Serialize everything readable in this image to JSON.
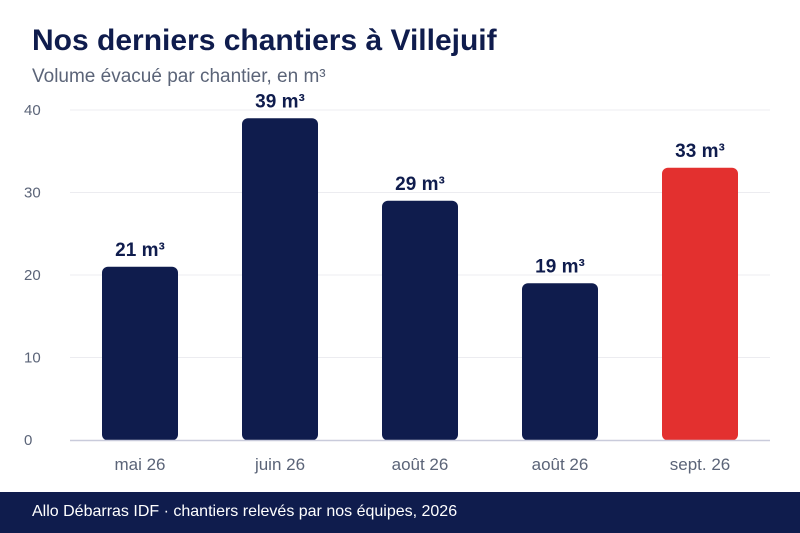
{
  "header": {
    "title": "Nos derniers chantiers à Villejuif",
    "subtitle": "Volume évacué par chantier, en m³"
  },
  "footer": {
    "text": "Allo Débarras IDF · chantiers relevés par nos équipes, 2026"
  },
  "colors": {
    "bar": "#0f1c4d",
    "highlight": "#e3302f",
    "grid": "#ececf0",
    "axis": "#c9cbdb",
    "tick_text": "#5b6478",
    "label_text": "#0f1c4d"
  },
  "chart_data": {
    "type": "bar",
    "title": "Nos derniers chantiers à Villejuif",
    "subtitle": "Volume évacué par chantier, en m³",
    "categories": [
      "mai 26",
      "juin 26",
      "août 26",
      "août 26",
      "sept. 26"
    ],
    "values": [
      21,
      39,
      29,
      19,
      33
    ],
    "value_labels": [
      "21 m³",
      "39 m³",
      "29 m³",
      "19 m³",
      "33 m³"
    ],
    "highlight_index": 4,
    "ylim": [
      0,
      40
    ],
    "yticks": [
      0,
      10,
      20,
      30,
      40
    ],
    "ytick_labels": [
      "0",
      "10",
      "20",
      "30",
      "40"
    ],
    "xlabel": "",
    "ylabel": "",
    "grid": true
  }
}
